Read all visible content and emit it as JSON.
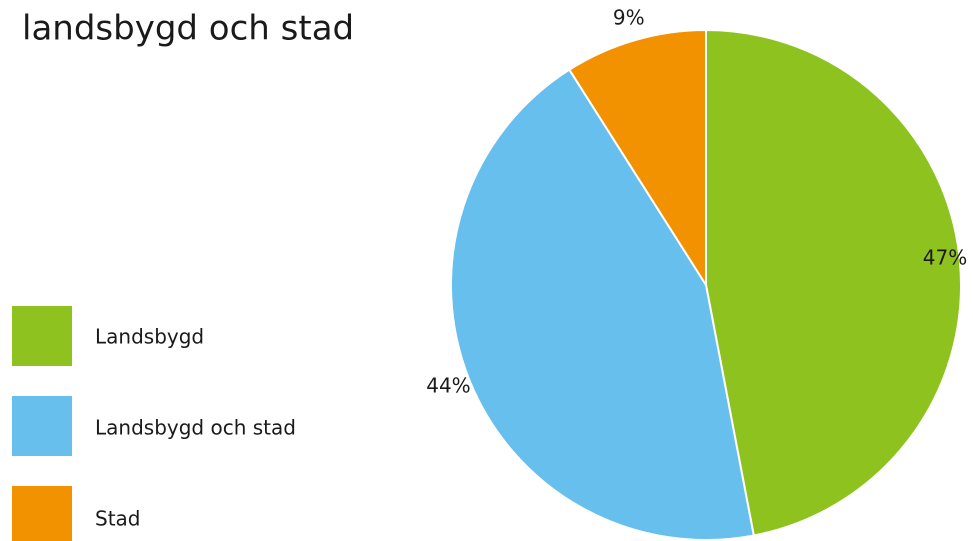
{
  "chart_data": {
    "type": "pie",
    "title": "landsbygd och stad",
    "categories": [
      "Landsbygd",
      "Landsbygd och stad",
      "Stad"
    ],
    "values": [
      47,
      44,
      9
    ],
    "value_labels": [
      "47%",
      "44%",
      "9%"
    ],
    "colors": [
      "#8dc21f",
      "#66bfec",
      "#f39200"
    ],
    "legend": "left"
  }
}
